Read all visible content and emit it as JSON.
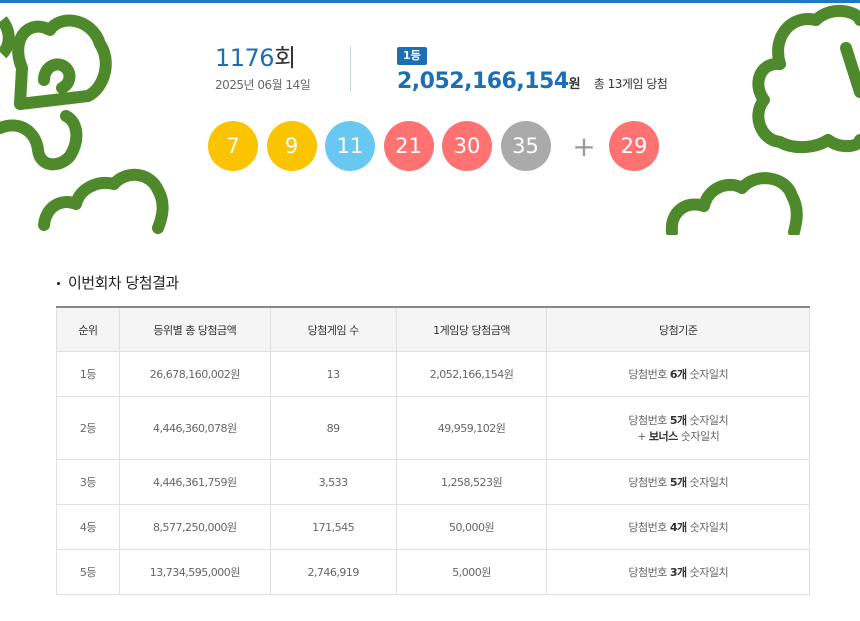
{
  "header": {
    "round_number": "1176",
    "round_suffix": "회",
    "draw_date": "2025년 06월 14일",
    "first_prize_badge": "1등",
    "first_prize_amount": "2,052,166,154",
    "first_prize_unit": "원",
    "first_prize_games": "총 13게임 당첨"
  },
  "balls": {
    "numbers": [
      "7",
      "9",
      "11",
      "21",
      "30",
      "35"
    ],
    "plus": "+",
    "bonus": "29",
    "colors": {
      "yellow": "#fbc400",
      "blue": "#69c8f2",
      "red": "#ff7272",
      "gray": "#aaaaaa"
    }
  },
  "results": {
    "section_title": "이번회차 당첨결과",
    "headers": [
      "순위",
      "등위별 총 당첨금액",
      "당첨게임 수",
      "1게임당 당첨금액",
      "당첨기준"
    ],
    "rows": [
      {
        "rank": "1등",
        "total": "26,678,160,002원",
        "games": "13",
        "per_game": "2,052,166,154원",
        "crit_pre": "당첨번호 ",
        "crit_bold": "6개",
        "crit_post": " 숫자일치",
        "crit2_pre": "",
        "crit2_bold": "",
        "crit2_post": ""
      },
      {
        "rank": "2등",
        "total": "4,446,360,078원",
        "games": "89",
        "per_game": "49,959,102원",
        "crit_pre": "당첨번호 ",
        "crit_bold": "5개",
        "crit_post": " 숫자일치",
        "crit2_pre": "+ ",
        "crit2_bold": "보너스",
        "crit2_post": " 숫자일치"
      },
      {
        "rank": "3등",
        "total": "4,446,361,759원",
        "games": "3,533",
        "per_game": "1,258,523원",
        "crit_pre": "당첨번호 ",
        "crit_bold": "5개",
        "crit_post": " 숫자일치",
        "crit2_pre": "",
        "crit2_bold": "",
        "crit2_post": ""
      },
      {
        "rank": "4등",
        "total": "8,577,250,000원",
        "games": "171,545",
        "per_game": "50,000원",
        "crit_pre": "당첨번호 ",
        "crit_bold": "4개",
        "crit_post": " 숫자일치",
        "crit2_pre": "",
        "crit2_bold": "",
        "crit2_post": ""
      },
      {
        "rank": "5등",
        "total": "13,734,595,000원",
        "games": "2,746,919",
        "per_game": "5,000원",
        "crit_pre": "당첨번호 ",
        "crit_bold": "3개",
        "crit_post": " 숫자일치",
        "crit2_pre": "",
        "crit2_bold": "",
        "crit2_post": ""
      }
    ]
  },
  "decor": {
    "leaf_color": "#4e8a2c",
    "badge_color": "#1c6fb2"
  }
}
